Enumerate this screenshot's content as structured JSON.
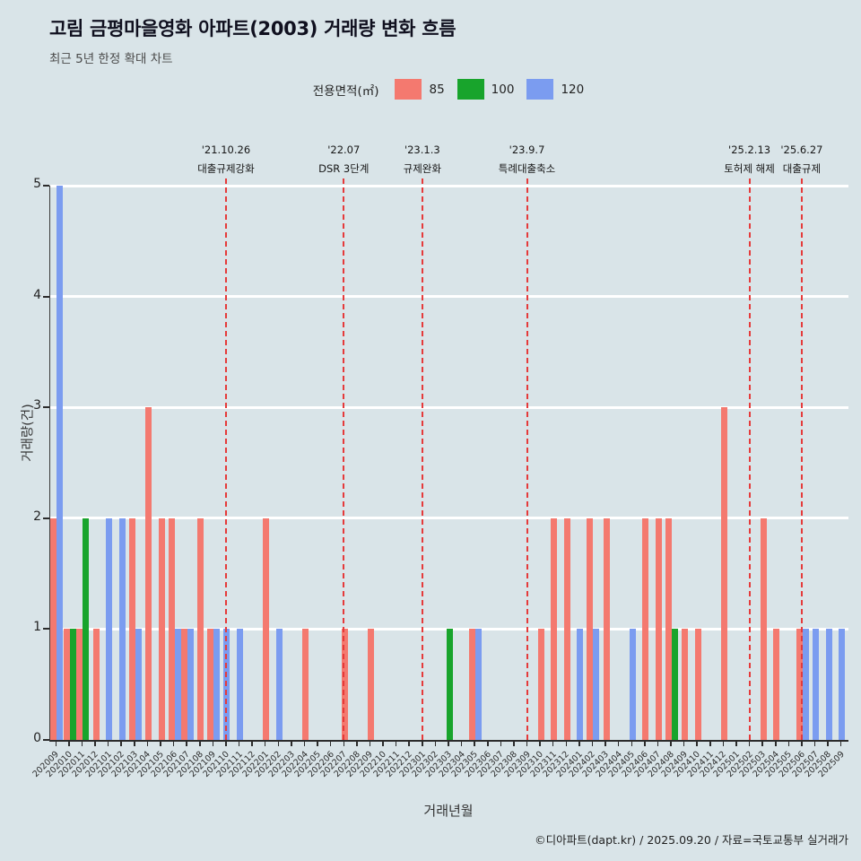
{
  "header": {
    "title": "고림 금평마을영화 아파트(2003) 거래량 변화 흐름",
    "subtitle": "최근 5년 한정 확대 차트"
  },
  "legend": {
    "label": "전용면적(㎡)",
    "items": [
      {
        "name": "85",
        "color": "#f4796f"
      },
      {
        "name": "100",
        "color": "#18a42c"
      },
      {
        "name": "120",
        "color": "#7b9cf0"
      }
    ]
  },
  "footer": {
    "text": "©디아파트(dapt.kr) / 2025.09.20 / 자료=국토교통부 실거래가"
  },
  "colors": {
    "background": "#d9e4e8",
    "grid": "#ffffff",
    "axis": "#2b2b2b",
    "annotation_line": "#e53a3a"
  },
  "chart_data": {
    "type": "bar",
    "title": "고림 금평마을영화 아파트(2003) 거래량 변화 흐름",
    "subtitle": "최근 5년 한정 확대 차트",
    "xlabel": "거래년월",
    "ylabel": "거래량(건)",
    "ylim": [
      0,
      5
    ],
    "yticks": [
      0,
      1,
      2,
      3,
      4,
      5
    ],
    "grid": true,
    "legend_position": "top",
    "categories": [
      "202009",
      "202010",
      "202011",
      "202012",
      "202101",
      "202102",
      "202103",
      "202104",
      "202105",
      "202106",
      "202107",
      "202108",
      "202109",
      "202110",
      "202111",
      "202112",
      "202201",
      "202202",
      "202203",
      "202204",
      "202205",
      "202206",
      "202207",
      "202208",
      "202209",
      "202210",
      "202211",
      "202212",
      "202301",
      "202302",
      "202303",
      "202304",
      "202305",
      "202306",
      "202307",
      "202308",
      "202309",
      "202310",
      "202311",
      "202312",
      "202401",
      "202402",
      "202403",
      "202404",
      "202405",
      "202406",
      "202407",
      "202408",
      "202409",
      "202410",
      "202411",
      "202412",
      "202501",
      "202502",
      "202503",
      "202504",
      "202505",
      "202506",
      "202507",
      "202508",
      "202509"
    ],
    "series": [
      {
        "name": "85",
        "color": "#f4796f",
        "values": [
          2,
          1,
          1,
          1,
          0,
          0,
          2,
          3,
          2,
          2,
          1,
          2,
          1,
          0,
          0,
          0,
          2,
          0,
          0,
          1,
          0,
          0,
          1,
          0,
          1,
          0,
          0,
          0,
          0,
          0,
          0,
          0,
          1,
          0,
          0,
          0,
          0,
          1,
          2,
          2,
          0,
          2,
          2,
          0,
          0,
          2,
          2,
          2,
          1,
          1,
          0,
          3,
          0,
          0,
          2,
          1,
          0,
          1,
          0,
          0,
          0
        ]
      },
      {
        "name": "100",
        "color": "#18a42c",
        "values": [
          0,
          1,
          2,
          0,
          0,
          0,
          0,
          0,
          0,
          0,
          0,
          0,
          0,
          0,
          0,
          0,
          0,
          0,
          0,
          0,
          0,
          0,
          0,
          0,
          0,
          0,
          0,
          0,
          0,
          0,
          1,
          0,
          0,
          0,
          0,
          0,
          0,
          0,
          0,
          0,
          0,
          0,
          0,
          0,
          0,
          0,
          0,
          1,
          0,
          0,
          0,
          0,
          0,
          0,
          0,
          0,
          0,
          0,
          0,
          0,
          0
        ]
      },
      {
        "name": "120",
        "color": "#7b9cf0",
        "values": [
          5,
          0,
          0,
          0,
          2,
          2,
          1,
          0,
          0,
          1,
          1,
          0,
          1,
          1,
          1,
          0,
          0,
          1,
          0,
          0,
          0,
          0,
          0,
          0,
          0,
          0,
          0,
          0,
          0,
          0,
          0,
          0,
          1,
          0,
          0,
          0,
          0,
          0,
          0,
          0,
          1,
          1,
          0,
          0,
          1,
          0,
          0,
          0,
          0,
          0,
          0,
          0,
          0,
          0,
          0,
          0,
          0,
          1,
          1,
          1,
          1
        ]
      }
    ],
    "annotations": [
      {
        "date": "'21.10.26",
        "label": "대출규제강화",
        "month": "202110"
      },
      {
        "date": "'22.07",
        "label": "DSR 3단계",
        "month": "202207"
      },
      {
        "date": "'23.1.3",
        "label": "규제완화",
        "month": "202301"
      },
      {
        "date": "'23.9.7",
        "label": "특례대출축소",
        "month": "202309"
      },
      {
        "date": "'25.2.13",
        "label": "토허제 해제",
        "month": "202502"
      },
      {
        "date": "'25.6.27",
        "label": "대출규제",
        "month": "202506"
      }
    ]
  }
}
